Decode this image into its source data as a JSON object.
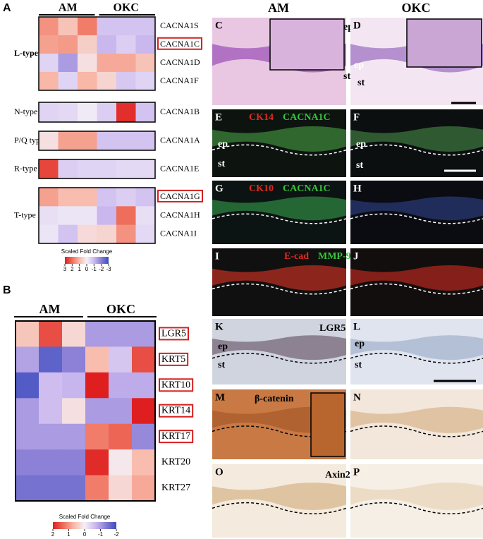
{
  "panel_a": {
    "letter": "A",
    "groups": [
      "AM",
      "OKC"
    ],
    "families": [
      {
        "label": "L-type",
        "genes": [
          "CACNA1S",
          "CACNA1C",
          "CACNA1D",
          "CACNA1F"
        ],
        "outlined": [
          false,
          true,
          false,
          false
        ],
        "values": [
          [
            1.5,
            0.8,
            1.8,
            -0.8,
            -0.8,
            -0.8
          ],
          [
            1.3,
            1.4,
            0.6,
            -1,
            -0.6,
            -1
          ],
          [
            -0.5,
            -1.5,
            0.3,
            1.2,
            1.2,
            0.8
          ],
          [
            1,
            -0.5,
            1,
            0.5,
            -0.7,
            -0.5
          ]
        ]
      },
      {
        "label": "N-type",
        "genes": [
          "CACNA1B"
        ],
        "outlined": [
          false
        ],
        "values": [
          [
            -0.5,
            -0.4,
            -0.1,
            -0.6,
            2.8,
            -0.8
          ]
        ]
      },
      {
        "label": "P/Q type",
        "genes": [
          "CACNA1A"
        ],
        "outlined": [
          false
        ],
        "values": [
          [
            0.3,
            1.3,
            1.3,
            -0.8,
            -0.8,
            -0.8
          ]
        ]
      },
      {
        "label": "R-type",
        "genes": [
          "CACNA1E"
        ],
        "outlined": [
          false
        ],
        "values": [
          [
            2.5,
            -0.6,
            -0.5,
            -0.5,
            -0.4,
            -0.4
          ]
        ]
      },
      {
        "label": "T-type",
        "genes": [
          "CACNA1G",
          "CACNA1H",
          "CACNA1I"
        ],
        "outlined": [
          true,
          false,
          false
        ],
        "values": [
          [
            1.3,
            0.9,
            0.9,
            -0.8,
            -0.6,
            -0.8
          ],
          [
            -0.3,
            -0.2,
            -0.2,
            -1,
            2,
            -0.3
          ],
          [
            -0.2,
            -0.8,
            0.4,
            0.5,
            1.5,
            -0.4
          ]
        ]
      }
    ],
    "legend": {
      "title": "Scaled Fold Change",
      "ticks": [
        3,
        2,
        1,
        0,
        -1,
        -2,
        -3
      ]
    }
  },
  "panel_b": {
    "letter": "B",
    "groups": [
      "AM",
      "OKC"
    ],
    "genes": [
      "LGR5",
      "KRT5",
      "KRT10",
      "KRT14",
      "KRT17",
      "KRT20",
      "KRT27"
    ],
    "outlined": [
      true,
      true,
      true,
      true,
      true,
      false,
      false
    ],
    "values": [
      [
        0.5,
        1.6,
        0.3,
        -1,
        -1,
        -1
      ],
      [
        -0.9,
        -1.7,
        -1.3,
        0.6,
        -0.5,
        1.6
      ],
      [
        -1.8,
        -0.6,
        -0.7,
        2,
        -0.8,
        -0.8
      ],
      [
        -1,
        -0.6,
        0.2,
        -1,
        -1,
        2
      ],
      [
        -1,
        -1,
        -1,
        1.2,
        1.4,
        -1.2
      ],
      [
        -1.3,
        -1.3,
        -1.3,
        1.9,
        0.1,
        0.6
      ],
      [
        -1.5,
        -1.5,
        -1.5,
        1.2,
        0.3,
        0.8
      ]
    ],
    "legend": {
      "title": "Scaled Fold Change",
      "ticks": [
        2,
        1,
        0,
        -1,
        -2
      ]
    }
  },
  "images": {
    "column_titles": [
      "AM",
      "OKC"
    ],
    "panels": [
      {
        "letter": "C",
        "labels": [
          "ep",
          "st"
        ]
      },
      {
        "letter": "D",
        "labels": [
          "ep",
          "st"
        ]
      },
      {
        "letter": "E",
        "labels": [
          "CK14",
          "CACNA1C",
          "ep",
          "st"
        ]
      },
      {
        "letter": "F",
        "labels": [
          "ep",
          "st"
        ]
      },
      {
        "letter": "G",
        "labels": [
          "CK10",
          "CACNA1C"
        ]
      },
      {
        "letter": "H",
        "labels": []
      },
      {
        "letter": "I",
        "labels": [
          "E-cad",
          "MMP-9"
        ]
      },
      {
        "letter": "J",
        "labels": []
      },
      {
        "letter": "K",
        "labels": [
          "LGR5",
          "ep",
          "st"
        ]
      },
      {
        "letter": "L",
        "labels": [
          "ep",
          "st"
        ]
      },
      {
        "letter": "M",
        "labels": [
          "β-catenin"
        ]
      },
      {
        "letter": "N",
        "labels": []
      },
      {
        "letter": "O",
        "labels": [
          "Axin2"
        ]
      },
      {
        "letter": "P",
        "labels": []
      }
    ]
  }
}
